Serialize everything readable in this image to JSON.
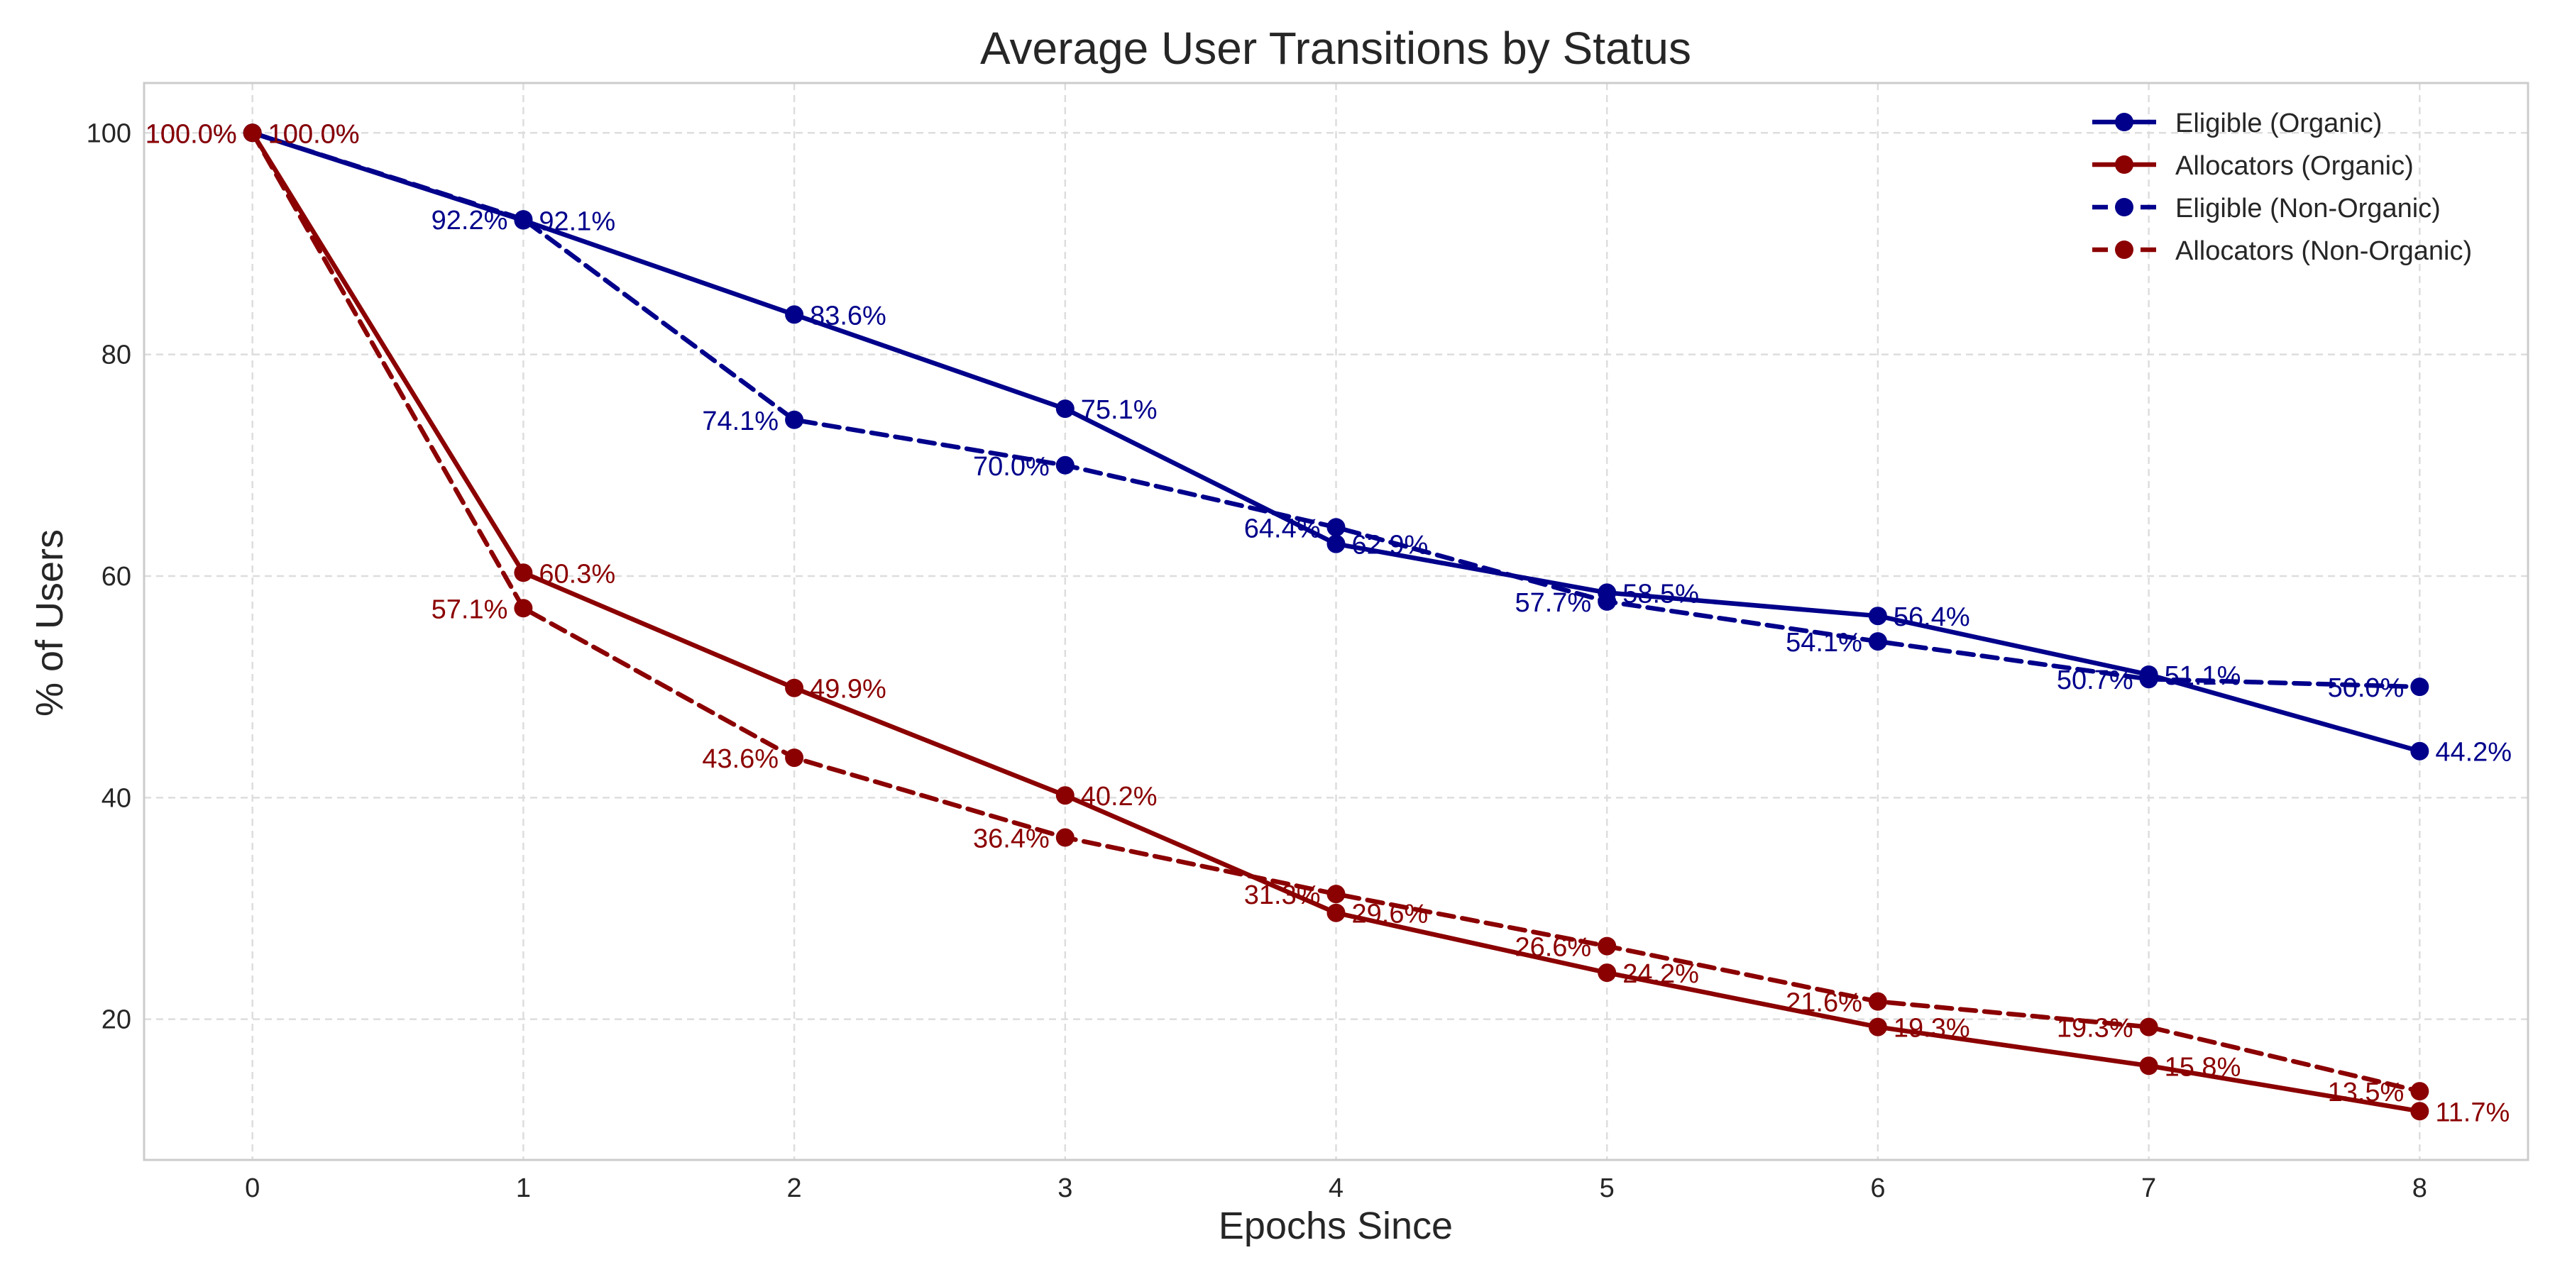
{
  "chart_data": {
    "type": "line",
    "title": "Average User Transitions by Status",
    "xlabel": "Epochs Since",
    "ylabel": "% of Users",
    "x": [
      0,
      1,
      2,
      3,
      4,
      5,
      6,
      7,
      8
    ],
    "xticks": [
      "0",
      "1",
      "2",
      "3",
      "4",
      "5",
      "6",
      "7",
      "8"
    ],
    "yticks": [
      "20",
      "40",
      "60",
      "80",
      "100"
    ],
    "xlim": [
      -0.4,
      8.4
    ],
    "ylim": [
      7.3,
      104.5
    ],
    "grid": true,
    "legend_position": "top-right",
    "series": [
      {
        "name": "Eligible (Organic)",
        "color": "#00008b",
        "dash": "solid",
        "values": [
          100.0,
          92.1,
          83.6,
          75.1,
          62.9,
          58.5,
          56.4,
          51.1,
          44.2
        ],
        "labels": [
          "100.0%",
          "92.1%",
          "83.6%",
          "75.1%",
          "62.9%",
          "58.5%",
          "56.4%",
          "51.1%",
          "44.2%"
        ],
        "label_side": "right"
      },
      {
        "name": "Allocators (Organic)",
        "color": "#8b0000",
        "dash": "solid",
        "values": [
          100.0,
          60.3,
          49.9,
          40.2,
          29.6,
          24.2,
          19.3,
          15.8,
          11.7
        ],
        "labels": [
          "100.0%",
          "60.3%",
          "49.9%",
          "40.2%",
          "29.6%",
          "24.2%",
          "19.3%",
          "15.8%",
          "11.7%"
        ],
        "label_side": "right"
      },
      {
        "name": "Eligible (Non-Organic)",
        "color": "#00008b",
        "dash": "dashed",
        "values": [
          100.0,
          92.2,
          74.1,
          70.0,
          64.4,
          57.7,
          54.1,
          50.7,
          50.0
        ],
        "labels": [
          "100.0%",
          "92.2%",
          "74.1%",
          "70.0%",
          "64.4%",
          "57.7%",
          "54.1%",
          "50.7%",
          "50.0%"
        ],
        "label_side": "left"
      },
      {
        "name": "Allocators (Non-Organic)",
        "color": "#8b0000",
        "dash": "dashed",
        "values": [
          100.0,
          57.1,
          43.6,
          36.4,
          31.3,
          26.6,
          21.6,
          19.3,
          13.5
        ],
        "labels": [
          "100.0%",
          "57.1%",
          "43.6%",
          "36.4%",
          "31.3%",
          "26.6%",
          "21.6%",
          "19.3%",
          "13.5%"
        ],
        "label_side": "left"
      }
    ],
    "colors": {
      "grid": "#dddddd",
      "axes": "#cccccc",
      "text": "#262626"
    }
  }
}
